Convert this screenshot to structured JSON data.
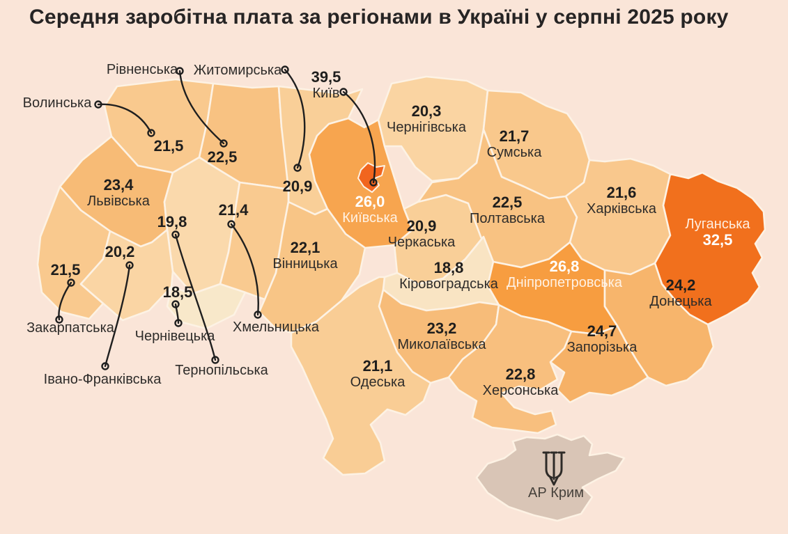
{
  "title": "Середня заробітна плата за регіонами в Україні у серпні 2025 року",
  "colors": {
    "background": "#FAE5D8",
    "border": "#FDF2E4",
    "leader_line": "#1F1F1F",
    "text_dark": "#1F1E1D",
    "text_light": "#FFFFFF",
    "crimea_fill": "#D9C5B6",
    "crimea_text": "#46413B",
    "ramp": [
      [
        18.4,
        "#F8E9CC"
      ],
      [
        20.0,
        "#FAD7A7"
      ],
      [
        21.5,
        "#F9C98E"
      ],
      [
        23.5,
        "#F7BA75"
      ],
      [
        25.0,
        "#F6AF62"
      ],
      [
        27.0,
        "#F79B3C"
      ],
      [
        32.5,
        "#F1701D"
      ],
      [
        39.5,
        "#F1651E"
      ]
    ]
  },
  "regions": [
    {
      "id": "volyn",
      "name": "Волинська",
      "value": 21.5,
      "display": "21,5"
    },
    {
      "id": "rivne",
      "name": "Рівненська",
      "value": 22.5,
      "display": "22,5"
    },
    {
      "id": "zhytomyr",
      "name": "Житомирська",
      "value": 20.9,
      "display": "20,9"
    },
    {
      "id": "kyivska",
      "name": "Київська",
      "value": 26.0,
      "display": "26,0"
    },
    {
      "id": "kyiv_city",
      "name": "Київ",
      "value": 39.5,
      "display": "39,5"
    },
    {
      "id": "chernihiv",
      "name": "Чернігівська",
      "value": 20.3,
      "display": "20,3"
    },
    {
      "id": "sumy",
      "name": "Сумська",
      "value": 21.7,
      "display": "21,7"
    },
    {
      "id": "lviv",
      "name": "Львівська",
      "value": 23.4,
      "display": "23,4"
    },
    {
      "id": "ternopil",
      "name": "Тернопільська",
      "value": 19.8,
      "display": "19,8"
    },
    {
      "id": "khmelnytskyi",
      "name": "Хмельницька",
      "value": 21.4,
      "display": "21,4"
    },
    {
      "id": "vinnytsia",
      "name": "Вінницька",
      "value": 22.1,
      "display": "22,1"
    },
    {
      "id": "cherkasy",
      "name": "Черкаська",
      "value": 20.9,
      "display": "20,9"
    },
    {
      "id": "poltava",
      "name": "Полтавська",
      "value": 22.5,
      "display": "22,5"
    },
    {
      "id": "kharkiv",
      "name": "Харківська",
      "value": 21.6,
      "display": "21,6"
    },
    {
      "id": "luhansk",
      "name": "Луганська",
      "value": 32.5,
      "display": "32,5"
    },
    {
      "id": "zakarpattia",
      "name": "Закарпатська",
      "value": 21.5,
      "display": "21,5"
    },
    {
      "id": "ivano_frankivsk",
      "name": "Івано-Франківська",
      "value": 20.2,
      "display": "20,2"
    },
    {
      "id": "chernivtsi",
      "name": "Чернівецька",
      "value": 18.5,
      "display": "18,5"
    },
    {
      "id": "kirovohrad",
      "name": "Кіровоградська",
      "value": 18.8,
      "display": "18,8"
    },
    {
      "id": "dnipro",
      "name": "Дніпропетровська",
      "value": 26.8,
      "display": "26,8"
    },
    {
      "id": "donetsk",
      "name": "Донецька",
      "value": 24.2,
      "display": "24,2"
    },
    {
      "id": "zaporizhzhia",
      "name": "Запорізька",
      "value": 24.7,
      "display": "24,7"
    },
    {
      "id": "mykolaiv",
      "name": "Миколаївська",
      "value": 23.2,
      "display": "23,2"
    },
    {
      "id": "odesa",
      "name": "Одеська",
      "value": 21.1,
      "display": "21,1"
    },
    {
      "id": "kherson",
      "name": "Херсонська",
      "value": 22.8,
      "display": "22,8"
    },
    {
      "id": "crimea",
      "name": "АР Крим",
      "value": null,
      "display": ""
    }
  ]
}
